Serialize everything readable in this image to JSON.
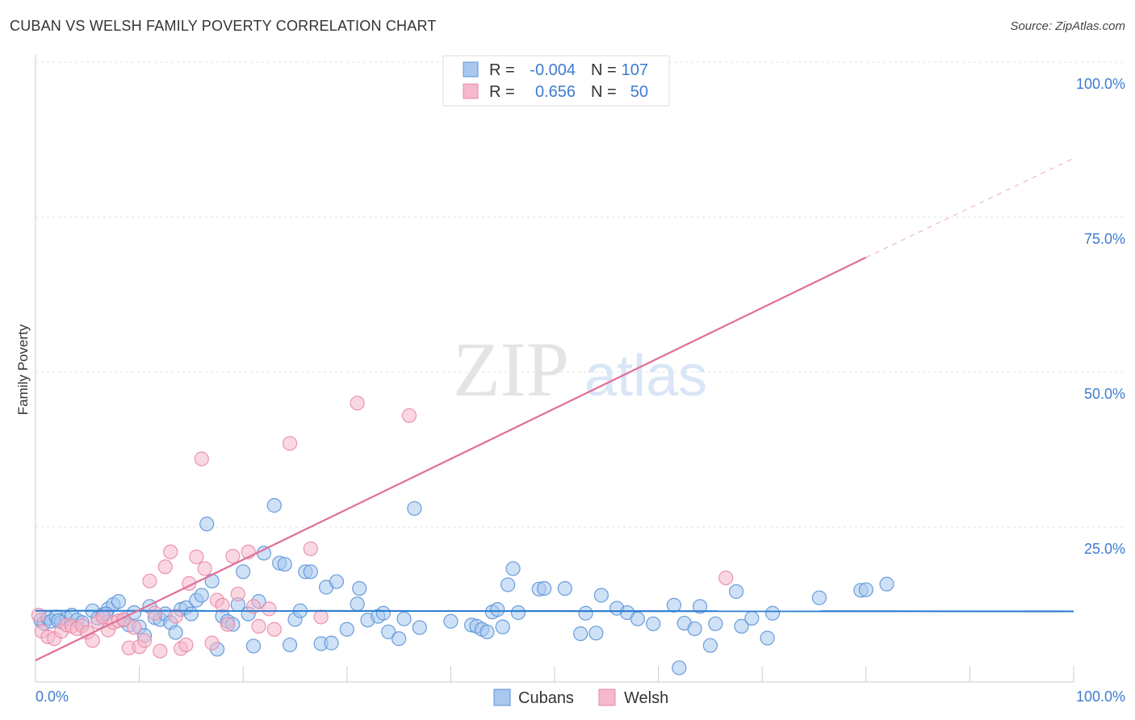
{
  "header": {
    "title": "CUBAN VS WELSH FAMILY POVERTY CORRELATION CHART",
    "source": "Source: ZipAtlas.com"
  },
  "colors": {
    "blue_fill": "#a8c8f0",
    "blue_stroke": "#5b93d6",
    "blue_line": "#2f7fd1",
    "pink_fill": "#f6b8cb",
    "pink_stroke": "#e98aa8",
    "pink_line": "#e0709a",
    "tick_text": "#3d7bd0",
    "grid": "#e2e2e2"
  },
  "watermark": {
    "zip": "ZIP",
    "atlas": "atlas"
  },
  "chart_data": {
    "type": "scatter",
    "title": "CUBAN VS WELSH FAMILY POVERTY CORRELATION CHART",
    "xlabel": "",
    "ylabel": "Family Poverty",
    "xlim": [
      0,
      100
    ],
    "ylim": [
      0,
      100
    ],
    "x_tick_labels": {
      "left": "0.0%",
      "right": "100.0%"
    },
    "y_ticks": [
      {
        "value": 25,
        "label": "25.0%"
      },
      {
        "value": 50,
        "label": "50.0%"
      },
      {
        "value": 75,
        "label": "75.0%"
      },
      {
        "value": 100,
        "label": "100.0%"
      }
    ],
    "grid": true,
    "legend_position": "top-center",
    "legend": [
      {
        "series": "Cubans",
        "r_label": "R =",
        "r_value": "-0.004",
        "n_label": "N =",
        "n_value": "107"
      },
      {
        "series": "Welsh",
        "r_label": "R =",
        "r_value": "0.656",
        "n_label": "N =",
        "n_value": "50"
      }
    ],
    "bottom_legend": [
      "Cubans",
      "Welsh"
    ],
    "series": [
      {
        "name": "Cubans",
        "trend": {
          "x0": 0,
          "y0": 11.5,
          "x1": 100,
          "y1": 11.4
        },
        "points": [
          [
            0.5,
            10
          ],
          [
            0.8,
            9.5
          ],
          [
            1.2,
            10.3
          ],
          [
            1.5,
            9.8
          ],
          [
            2.0,
            10.5
          ],
          [
            2.5,
            9.7
          ],
          [
            3.0,
            10.2
          ],
          [
            3.5,
            10.8
          ],
          [
            4.0,
            10.0
          ],
          [
            4.5,
            9.6
          ],
          [
            5.5,
            11.5
          ],
          [
            6.0,
            10.3
          ],
          [
            6.5,
            10.9
          ],
          [
            7.0,
            11.8
          ],
          [
            7.5,
            12.5
          ],
          [
            8.0,
            13.0
          ],
          [
            8.5,
            10.0
          ],
          [
            9.0,
            9.2
          ],
          [
            9.5,
            11.2
          ],
          [
            10.0,
            8.9
          ],
          [
            10.5,
            7.5
          ],
          [
            11.0,
            12.2
          ],
          [
            11.5,
            10.4
          ],
          [
            12.0,
            10.1
          ],
          [
            12.5,
            11.0
          ],
          [
            13.0,
            9.6
          ],
          [
            13.5,
            8.0
          ],
          [
            14.0,
            11.7
          ],
          [
            14.5,
            12.0
          ],
          [
            15.0,
            11.0
          ],
          [
            15.5,
            13.2
          ],
          [
            16.0,
            14.0
          ],
          [
            16.5,
            25.5
          ],
          [
            17.0,
            16.3
          ],
          [
            17.5,
            5.3
          ],
          [
            18.0,
            10.6
          ],
          [
            18.5,
            9.8
          ],
          [
            19.0,
            9.3
          ],
          [
            19.5,
            12.5
          ],
          [
            20.0,
            17.8
          ],
          [
            20.5,
            11.0
          ],
          [
            21.0,
            5.8
          ],
          [
            21.5,
            13.0
          ],
          [
            22.0,
            20.8
          ],
          [
            23.0,
            28.5
          ],
          [
            23.5,
            19.2
          ],
          [
            24.0,
            19.0
          ],
          [
            24.5,
            6.0
          ],
          [
            25.0,
            10.1
          ],
          [
            25.5,
            11.5
          ],
          [
            26.0,
            17.8
          ],
          [
            26.5,
            17.8
          ],
          [
            27.5,
            6.2
          ],
          [
            28.0,
            15.3
          ],
          [
            28.5,
            6.3
          ],
          [
            29.0,
            16.2
          ],
          [
            30.0,
            8.5
          ],
          [
            31.0,
            12.6
          ],
          [
            31.2,
            15.1
          ],
          [
            32.0,
            10.0
          ],
          [
            33.0,
            10.6
          ],
          [
            33.5,
            11.1
          ],
          [
            34.0,
            8.1
          ],
          [
            35.0,
            7.0
          ],
          [
            35.5,
            10.2
          ],
          [
            36.5,
            28.0
          ],
          [
            37.0,
            8.8
          ],
          [
            40.0,
            9.8
          ],
          [
            42.0,
            9.2
          ],
          [
            42.5,
            9.0
          ],
          [
            43.0,
            8.5
          ],
          [
            43.5,
            8.1
          ],
          [
            44.0,
            11.3
          ],
          [
            44.5,
            11.7
          ],
          [
            45.0,
            8.9
          ],
          [
            45.5,
            15.7
          ],
          [
            46.0,
            18.3
          ],
          [
            46.5,
            11.2
          ],
          [
            48.5,
            15.0
          ],
          [
            49.0,
            15.1
          ],
          [
            51.0,
            15.1
          ],
          [
            52.5,
            7.8
          ],
          [
            53.0,
            11.1
          ],
          [
            54.0,
            7.9
          ],
          [
            54.5,
            14.0
          ],
          [
            56.0,
            11.9
          ],
          [
            57.0,
            11.2
          ],
          [
            58.0,
            10.2
          ],
          [
            59.5,
            9.4
          ],
          [
            61.5,
            12.4
          ],
          [
            62.0,
            2.3
          ],
          [
            62.5,
            9.5
          ],
          [
            63.5,
            8.6
          ],
          [
            64.0,
            12.2
          ],
          [
            65.0,
            5.9
          ],
          [
            65.5,
            9.4
          ],
          [
            67.5,
            14.6
          ],
          [
            68.0,
            9.0
          ],
          [
            69.0,
            10.3
          ],
          [
            70.5,
            7.1
          ],
          [
            71.0,
            11.1
          ],
          [
            75.5,
            13.6
          ],
          [
            79.5,
            14.8
          ],
          [
            80.0,
            14.9
          ],
          [
            82.0,
            15.8
          ],
          [
            2.2,
            9.9
          ],
          [
            6.8,
            11.0
          ]
        ]
      },
      {
        "name": "Welsh",
        "trend": {
          "x0": 0,
          "y0": 3.5,
          "x1": 80,
          "y1": 68.5
        },
        "trend_dashed": {
          "x0": 80,
          "y0": 68.5,
          "x1": 100,
          "y1": 84.5
        },
        "points": [
          [
            0.3,
            10.8
          ],
          [
            0.6,
            8.2
          ],
          [
            1.2,
            7.3
          ],
          [
            1.8,
            7.0
          ],
          [
            2.5,
            8.2
          ],
          [
            3.0,
            9.2
          ],
          [
            3.5,
            9.0
          ],
          [
            4.0,
            8.6
          ],
          [
            4.5,
            9.1
          ],
          [
            5.0,
            8.0
          ],
          [
            5.5,
            6.7
          ],
          [
            6.0,
            9.7
          ],
          [
            6.5,
            10.5
          ],
          [
            7.0,
            8.4
          ],
          [
            7.5,
            9.6
          ],
          [
            8.0,
            9.9
          ],
          [
            8.5,
            10.1
          ],
          [
            9.0,
            5.5
          ],
          [
            9.5,
            8.8
          ],
          [
            10.0,
            5.7
          ],
          [
            10.5,
            6.7
          ],
          [
            11.0,
            16.3
          ],
          [
            11.5,
            11.1
          ],
          [
            12.0,
            5.0
          ],
          [
            12.5,
            18.6
          ],
          [
            13.0,
            21.0
          ],
          [
            13.5,
            10.6
          ],
          [
            14.0,
            5.4
          ],
          [
            14.5,
            6.0
          ],
          [
            14.8,
            15.9
          ],
          [
            15.5,
            20.2
          ],
          [
            16.0,
            36.0
          ],
          [
            16.3,
            18.3
          ],
          [
            17.0,
            6.3
          ],
          [
            17.5,
            13.2
          ],
          [
            18.0,
            12.4
          ],
          [
            18.5,
            9.3
          ],
          [
            19.0,
            20.3
          ],
          [
            19.5,
            14.2
          ],
          [
            20.5,
            21.0
          ],
          [
            21.0,
            12.2
          ],
          [
            21.5,
            9.0
          ],
          [
            22.5,
            11.8
          ],
          [
            23.0,
            8.5
          ],
          [
            24.5,
            38.5
          ],
          [
            26.5,
            21.5
          ],
          [
            27.5,
            10.5
          ],
          [
            31.0,
            45.0
          ],
          [
            36.0,
            43.0
          ],
          [
            66.5,
            16.8
          ]
        ]
      }
    ]
  }
}
